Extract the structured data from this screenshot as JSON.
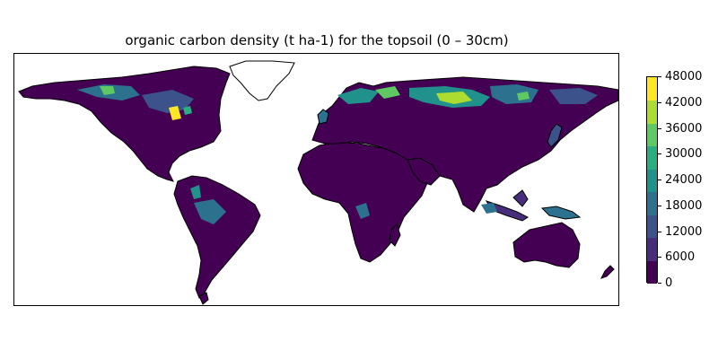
{
  "map": {
    "title": "organic carbon density (t ha-1) for the topsoil (0 – 30cm)",
    "projection": "PlateCarree",
    "extent": {
      "lon": [
        -180,
        180
      ],
      "lat": [
        -90,
        90
      ]
    },
    "ocean_color": "#ffffff",
    "coastline_color": "#000000"
  },
  "colorbar": {
    "colormap": "viridis",
    "levels": [
      0,
      6000,
      12000,
      18000,
      24000,
      30000,
      36000,
      42000,
      48000
    ],
    "tick_labels": [
      "0",
      "6000",
      "12000",
      "18000",
      "24000",
      "30000",
      "36000",
      "42000",
      "48000"
    ],
    "colors": [
      "#440154",
      "#472d7b",
      "#3b528b",
      "#2c728e",
      "#21918c",
      "#28ae80",
      "#5ec962",
      "#addc30",
      "#fde725"
    ]
  }
}
